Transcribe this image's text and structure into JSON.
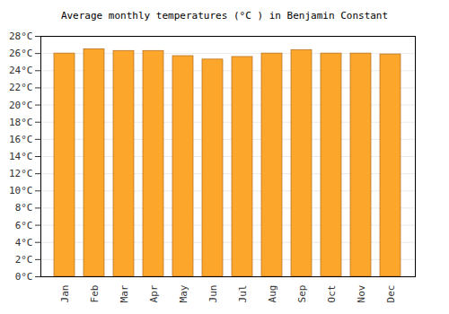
{
  "chart_data": {
    "type": "bar",
    "title": "Average monthly temperatures (°C ) in Benjamin Constant",
    "categories": [
      "Jan",
      "Feb",
      "Mar",
      "Apr",
      "May",
      "Jun",
      "Jul",
      "Aug",
      "Sep",
      "Oct",
      "Nov",
      "Dec"
    ],
    "values": [
      26.0,
      26.5,
      26.3,
      26.3,
      25.7,
      25.3,
      25.6,
      26.0,
      26.4,
      26.0,
      26.0,
      25.9
    ],
    "color": "#fca62c",
    "ylim": [
      0,
      28
    ],
    "yticks": [
      {
        "value": 0,
        "label": "0°C"
      },
      {
        "value": 2,
        "label": "2°C"
      },
      {
        "value": 4,
        "label": "4°C"
      },
      {
        "value": 6,
        "label": "6°C"
      },
      {
        "value": 8,
        "label": "8°C"
      },
      {
        "value": 10,
        "label": "10°C"
      },
      {
        "value": 12,
        "label": "12°C"
      },
      {
        "value": 14,
        "label": "14°C"
      },
      {
        "value": 16,
        "label": "16°C"
      },
      {
        "value": 18,
        "label": "18°C"
      },
      {
        "value": 20,
        "label": "20°C"
      },
      {
        "value": 22,
        "label": "22°C"
      },
      {
        "value": 24,
        "label": "24°C"
      },
      {
        "value": 26,
        "label": "26°C"
      },
      {
        "value": 28,
        "label": "28°C"
      }
    ],
    "grid": true
  }
}
